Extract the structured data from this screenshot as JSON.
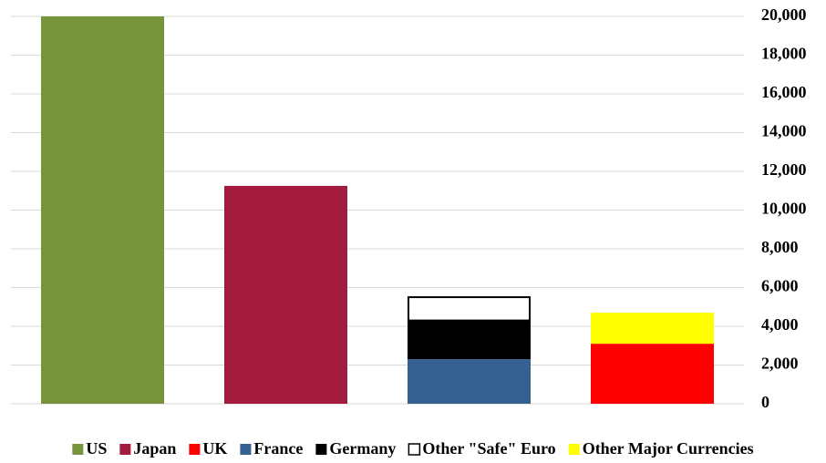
{
  "chart_data": {
    "type": "bar",
    "stacked": true,
    "categories": [
      null,
      null,
      null,
      null
    ],
    "series": [
      {
        "name": "US",
        "color": "#77933c",
        "values": [
          20000,
          null,
          null,
          null
        ]
      },
      {
        "name": "Japan",
        "color": "#a31c3f",
        "values": [
          null,
          11250,
          null,
          null
        ]
      },
      {
        "name": "UK",
        "color": "#ff0000",
        "values": [
          null,
          null,
          null,
          3100
        ]
      },
      {
        "name": "France",
        "color": "#366092",
        "values": [
          null,
          null,
          2300,
          null
        ]
      },
      {
        "name": "Germany",
        "color": "#000000",
        "values": [
          null,
          null,
          2000,
          null
        ]
      },
      {
        "name": "Other \"Safe\" Euro",
        "color": "#ffffff",
        "values": [
          null,
          null,
          1250,
          null
        ]
      },
      {
        "name": "Other Major Currencies",
        "color": "#ffff00",
        "values": [
          null,
          null,
          null,
          1600
        ]
      }
    ],
    "ylim": [
      0,
      20000
    ],
    "yticks": [
      0,
      {
        "value": 2000,
        "label": "2,000"
      },
      {
        "value": 4000,
        "label": "4,000"
      },
      {
        "value": 6000,
        "label": "6,000"
      },
      {
        "value": 8000,
        "label": "8,000"
      },
      {
        "value": 10000,
        "label": "10,000"
      },
      {
        "value": 12000,
        "label": "12,000"
      },
      {
        "value": 14000,
        "label": "14,000"
      },
      {
        "value": 16000,
        "label": "16,000"
      },
      {
        "value": 18000,
        "label": "18,000"
      },
      {
        "value": 20000,
        "label": "20,000"
      }
    ],
    "y_axis_side": "right",
    "grid": true,
    "legend": "bottom"
  }
}
